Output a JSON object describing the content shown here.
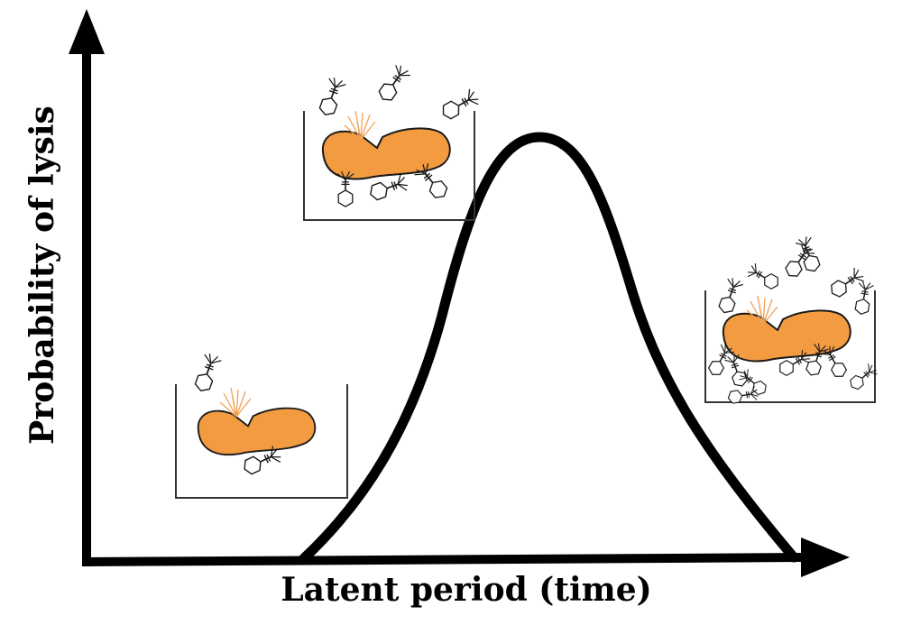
{
  "diagram": {
    "x_axis_label": "Latent period (time)",
    "y_axis_label": "Probability of lysis",
    "curve": {
      "shape": "bell-shaped",
      "stroke_color": "#000000"
    },
    "insets": [
      {
        "stage": "early",
        "phage_count": 2,
        "cell_color": "#f29b41"
      },
      {
        "stage": "peak",
        "phage_count": 6,
        "cell_color": "#f29b41"
      },
      {
        "stage": "late",
        "phage_count": 14,
        "cell_color": "#f29b41"
      }
    ],
    "colors": {
      "axis": "#000000",
      "cell_fill": "#f29b41",
      "cell_stroke": "#1a1a1a",
      "burst": "#f2a055"
    }
  }
}
